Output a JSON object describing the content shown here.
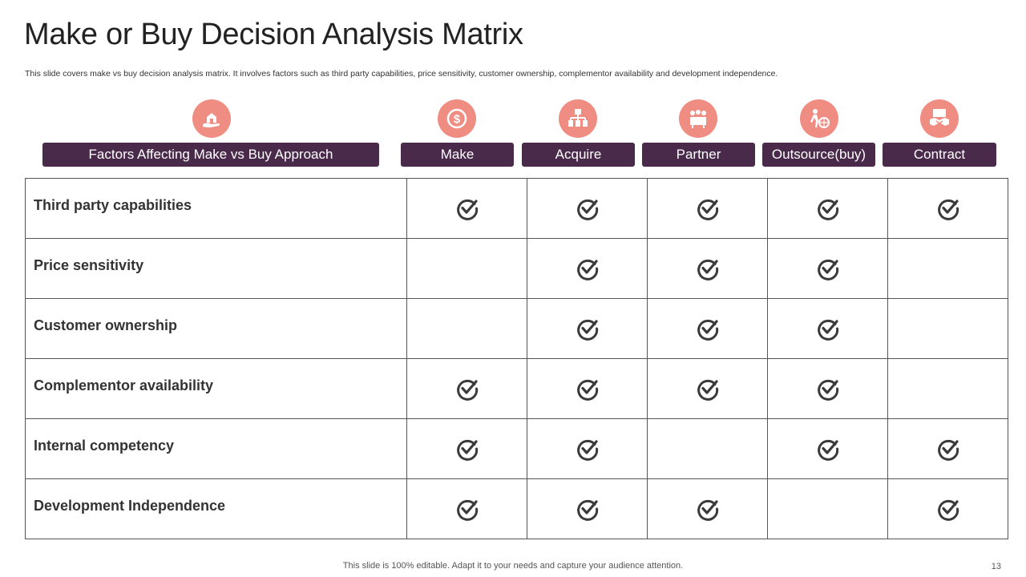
{
  "title": "Make or Buy Decision Analysis Matrix",
  "subtitle": "This slide covers make vs buy decision analysis matrix. It involves factors such as third party capabilities, price sensitivity, customer ownership, complementor availability and development independence.",
  "headers": {
    "factor": "Factors Affecting Make vs Buy Approach",
    "columns": [
      "Make",
      "Acquire",
      "Partner",
      "Outsource(buy)",
      "Contract"
    ]
  },
  "icons": [
    "hand-house-icon",
    "dollar-coin-icon",
    "hierarchy-icon",
    "meeting-icon",
    "worker-globe-icon",
    "handshake-icon"
  ],
  "rows": [
    {
      "label": "Third party capabilities",
      "checks": [
        true,
        true,
        true,
        true,
        true
      ]
    },
    {
      "label": "Price sensitivity",
      "checks": [
        false,
        true,
        true,
        true,
        false
      ]
    },
    {
      "label": "Customer ownership",
      "checks": [
        false,
        true,
        true,
        true,
        false
      ]
    },
    {
      "label": "Complementor availability",
      "checks": [
        true,
        true,
        true,
        true,
        false
      ]
    },
    {
      "label": "Internal competency",
      "checks": [
        true,
        true,
        false,
        true,
        true
      ]
    },
    {
      "label": "Development Independence",
      "checks": [
        true,
        true,
        true,
        false,
        true
      ]
    }
  ],
  "colors": {
    "accent": "#f08d83",
    "header_bg": "#4a2a4a",
    "check": "#3a3a3a"
  },
  "footer": "This slide is 100% editable. Adapt it to your needs and capture your audience attention.",
  "page_number": "13"
}
